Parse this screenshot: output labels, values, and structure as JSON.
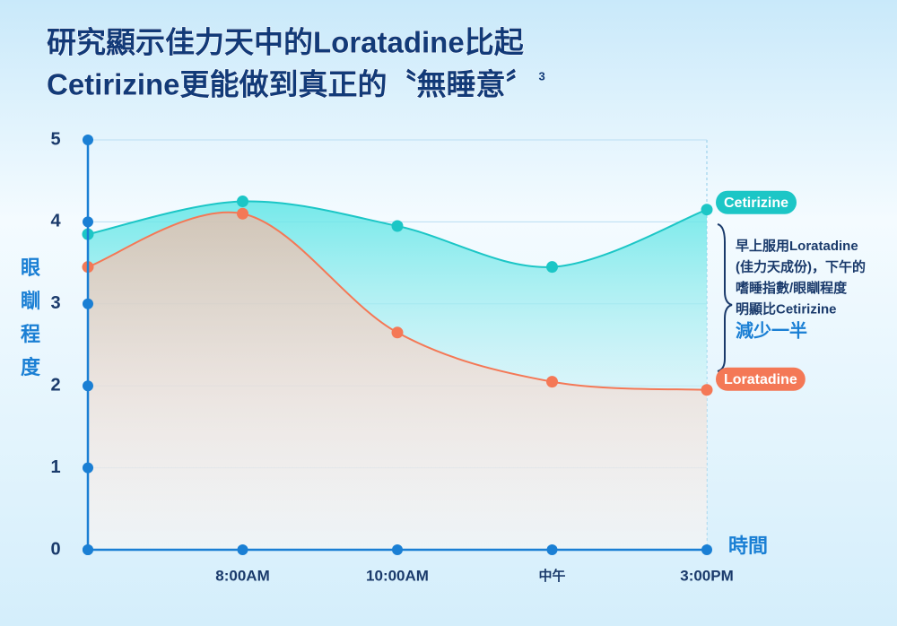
{
  "chart_data": {
    "type": "area",
    "title": [
      "研究顯示佳力天中的Loratadine比起",
      "Cetirizine更能做到真正的〝無睡意〞"
    ],
    "title_superscript": "3",
    "y_label": "眼瞓程度",
    "x_label": "時間",
    "categories": [
      null,
      "8:00AM",
      "10:00AM",
      "中午",
      "3:00PM"
    ],
    "ylim": [
      0,
      5
    ],
    "yticks": [
      0,
      1,
      2,
      3,
      4,
      5
    ],
    "grid": true,
    "series": [
      {
        "name": "Cetirizine",
        "color": "#1cc6c6",
        "values": [
          3.85,
          4.25,
          3.95,
          3.45,
          4.15
        ]
      },
      {
        "name": "Loratadine",
        "color": "#f47856",
        "values": [
          3.45,
          4.1,
          2.65,
          2.05,
          1.95
        ]
      }
    ],
    "annotation": [
      "早上服用Loratadine",
      "(佳力天成份)，下午的",
      "嗜睡指數/眼瞓程度",
      "明顯比Cetirizine"
    ],
    "annotation_emphasis": "減少一半"
  }
}
